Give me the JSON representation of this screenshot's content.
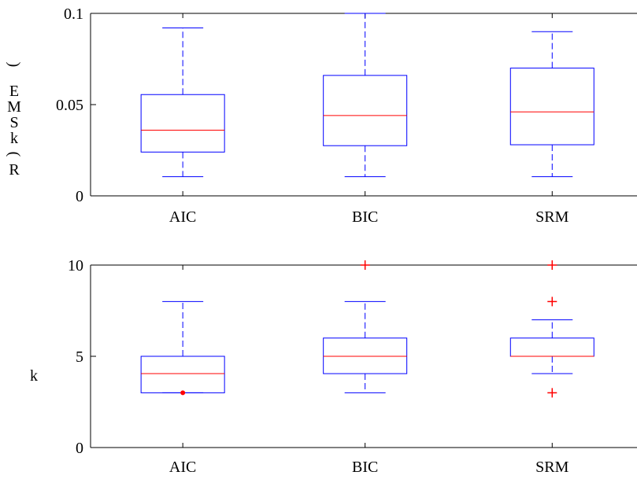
{
  "colors": {
    "box": "#0000ff",
    "median": "#ff0000",
    "outlier": "#ff0000",
    "axis": "#000000",
    "background": "#ffffff"
  },
  "chart_data": [
    {
      "type": "box",
      "title": "",
      "xlabel": "",
      "ylabel": "R(k,SM E)",
      "ylabel_glyphs": [
        "R",
        "(",
        "k",
        "S",
        "M",
        "E",
        ")"
      ],
      "categories": [
        "AIC",
        "BIC",
        "SRM"
      ],
      "ylim": [
        0,
        0.1
      ],
      "yticks": [
        0,
        0.05,
        0.1
      ],
      "ytick_labels": [
        "0",
        "0.05",
        "0.1"
      ],
      "grid": false,
      "boxes": [
        {
          "category": "AIC",
          "whisker_low": 0.0105,
          "q1": 0.024,
          "median": 0.036,
          "q3": 0.0555,
          "whisker_high": 0.092,
          "outliers": []
        },
        {
          "category": "BIC",
          "whisker_low": 0.0105,
          "q1": 0.0275,
          "median": 0.044,
          "q3": 0.066,
          "whisker_high": 0.1,
          "outliers": []
        },
        {
          "category": "SRM",
          "whisker_low": 0.0105,
          "q1": 0.028,
          "median": 0.046,
          "q3": 0.07,
          "whisker_high": 0.09,
          "outliers": []
        }
      ]
    },
    {
      "type": "box",
      "title": "",
      "xlabel": "",
      "ylabel": "k",
      "categories": [
        "AIC",
        "BIC",
        "SRM"
      ],
      "ylim": [
        0,
        10
      ],
      "yticks": [
        0,
        5,
        10
      ],
      "ytick_labels": [
        "0",
        "5",
        "10"
      ],
      "grid": false,
      "boxes": [
        {
          "category": "AIC",
          "whisker_low": 3,
          "q1": 3,
          "median": 4.05,
          "q3": 5,
          "whisker_high": 8,
          "outliers": [
            3
          ]
        },
        {
          "category": "BIC",
          "whisker_low": 3,
          "q1": 4.05,
          "median": 5,
          "q3": 6,
          "whisker_high": 8,
          "outliers": [
            10
          ]
        },
        {
          "category": "SRM",
          "whisker_low": 4.05,
          "q1": 5,
          "median": 5,
          "q3": 6,
          "whisker_high": 7,
          "outliers": [
            3,
            8,
            10
          ]
        }
      ]
    }
  ]
}
